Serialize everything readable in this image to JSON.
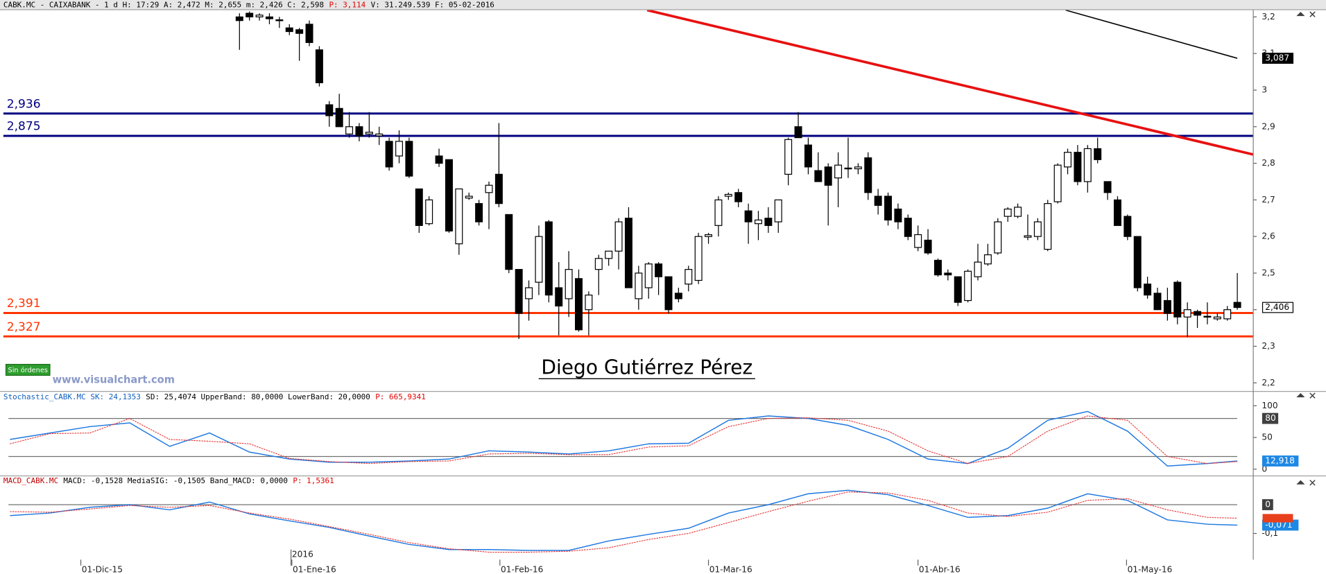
{
  "chart_data": [
    {
      "type": "candlestick",
      "title": [
        {
          "text": "CABK.MC - CAIXABANK -  1 d H: 17:29 A: 2,472 M: 2,655 m: 2,426 C: 2,598",
          "color": "#000000"
        },
        {
          "text": "P: 3,114",
          "color": "#e00000"
        },
        {
          "text": "V: 31.249.539 F: 05-02-2016",
          "color": "#000000"
        }
      ],
      "x": [
        0,
        1,
        2,
        3,
        4,
        5,
        6,
        7,
        8,
        9,
        10,
        11,
        12,
        13,
        14,
        15,
        16,
        17,
        18,
        19,
        20,
        21,
        22,
        23,
        24,
        25,
        26,
        27,
        28,
        29,
        30,
        31,
        32,
        33,
        34,
        35,
        36,
        37,
        38,
        39,
        40,
        41,
        42,
        43,
        44,
        45,
        46,
        47,
        48,
        49,
        50,
        51,
        52,
        53,
        54,
        55,
        56,
        57,
        58,
        59,
        60,
        61,
        62,
        63,
        64,
        65,
        66,
        67,
        68,
        69,
        70,
        71,
        72,
        73,
        74,
        75,
        76,
        77,
        78,
        79,
        80,
        81,
        82,
        83,
        84,
        85,
        86,
        87,
        88,
        89,
        90,
        91,
        92,
        93,
        94,
        95,
        96,
        97,
        98,
        99,
        100
      ],
      "open": [
        3.2,
        3.21,
        3.2,
        3.2,
        3.19,
        3.17,
        3.165,
        3.18,
        3.11,
        2.96,
        2.95,
        2.88,
        2.9,
        2.88,
        2.875,
        2.86,
        2.82,
        2.86,
        2.73,
        2.635,
        2.82,
        2.81,
        2.58,
        2.705,
        2.69,
        2.72,
        2.77,
        2.66,
        2.51,
        2.43,
        2.475,
        2.64,
        2.46,
        2.43,
        2.485,
        2.4,
        2.51,
        2.54,
        2.56,
        2.65,
        2.43,
        2.46,
        2.525,
        2.49,
        2.445,
        2.47,
        2.48,
        2.6,
        2.63,
        2.71,
        2.72,
        2.67,
        2.635,
        2.65,
        2.64,
        2.77,
        2.9,
        2.85,
        2.78,
        2.79,
        2.76,
        2.785,
        2.785,
        2.815,
        2.71,
        2.71,
        2.675,
        2.65,
        2.57,
        2.59,
        2.535,
        2.5,
        2.49,
        2.425,
        2.49,
        2.525,
        2.555,
        2.655,
        2.655,
        2.598,
        2.6,
        2.565,
        2.695,
        2.79,
        2.83,
        2.75,
        2.84,
        2.75,
        2.7,
        2.655,
        2.6,
        2.47,
        2.445,
        2.425,
        2.475,
        2.38,
        2.395,
        2.38,
        2.375,
        2.375,
        2.42
      ],
      "high": [
        3.21,
        3.215,
        3.21,
        3.21,
        3.2,
        3.18,
        3.17,
        3.19,
        3.12,
        2.97,
        2.99,
        2.94,
        2.91,
        2.94,
        2.9,
        2.87,
        2.89,
        2.87,
        2.73,
        2.71,
        2.84,
        2.81,
        2.73,
        2.72,
        2.7,
        2.75,
        2.91,
        2.66,
        2.51,
        2.48,
        2.63,
        2.645,
        2.53,
        2.56,
        2.51,
        2.45,
        2.55,
        2.56,
        2.65,
        2.68,
        2.52,
        2.53,
        2.53,
        2.49,
        2.46,
        2.52,
        2.61,
        2.61,
        2.71,
        2.72,
        2.73,
        2.69,
        2.67,
        2.68,
        2.7,
        2.87,
        2.94,
        2.87,
        2.83,
        2.8,
        2.83,
        2.87,
        2.8,
        2.83,
        2.73,
        2.72,
        2.69,
        2.66,
        2.63,
        2.62,
        2.54,
        2.51,
        2.49,
        2.51,
        2.58,
        2.58,
        2.65,
        2.68,
        2.69,
        2.66,
        2.65,
        2.7,
        2.8,
        2.84,
        2.85,
        2.85,
        2.87,
        2.75,
        2.71,
        2.66,
        2.6,
        2.49,
        2.46,
        2.46,
        2.48,
        2.42,
        2.4,
        2.42,
        2.39,
        2.41,
        2.5
      ],
      "low": [
        3.11,
        3.19,
        3.19,
        3.18,
        3.17,
        3.15,
        3.08,
        3.12,
        3.01,
        2.9,
        2.9,
        2.87,
        2.86,
        2.87,
        2.85,
        2.78,
        2.8,
        2.76,
        2.61,
        2.63,
        2.79,
        2.61,
        2.55,
        2.7,
        2.63,
        2.62,
        2.68,
        2.5,
        2.32,
        2.37,
        2.44,
        2.42,
        2.33,
        2.38,
        2.34,
        2.33,
        2.44,
        2.52,
        2.51,
        2.46,
        2.4,
        2.43,
        2.44,
        2.39,
        2.42,
        2.45,
        2.47,
        2.58,
        2.6,
        2.7,
        2.68,
        2.58,
        2.59,
        2.61,
        2.61,
        2.74,
        2.87,
        2.77,
        2.75,
        2.63,
        2.68,
        2.76,
        2.77,
        2.7,
        2.66,
        2.63,
        2.62,
        2.59,
        2.56,
        2.55,
        2.49,
        2.48,
        2.41,
        2.42,
        2.48,
        2.52,
        2.55,
        2.64,
        2.65,
        2.59,
        2.59,
        2.56,
        2.69,
        2.77,
        2.74,
        2.72,
        2.8,
        2.7,
        2.63,
        2.59,
        2.45,
        2.43,
        2.4,
        2.37,
        2.36,
        2.325,
        2.35,
        2.36,
        2.37,
        2.37,
        2.4
      ],
      "close": [
        3.19,
        3.2,
        3.205,
        3.195,
        3.192,
        3.16,
        3.155,
        3.13,
        3.02,
        2.93,
        2.9,
        2.9,
        2.875,
        2.885,
        2.88,
        2.79,
        2.86,
        2.765,
        2.63,
        2.7,
        2.8,
        2.615,
        2.73,
        2.71,
        2.64,
        2.74,
        2.69,
        2.51,
        2.39,
        2.46,
        2.6,
        2.44,
        2.41,
        2.51,
        2.345,
        2.44,
        2.54,
        2.56,
        2.64,
        2.46,
        2.5,
        2.525,
        2.49,
        2.4,
        2.43,
        2.51,
        2.6,
        2.605,
        2.7,
        2.715,
        2.695,
        2.64,
        2.645,
        2.63,
        2.7,
        2.865,
        2.87,
        2.79,
        2.75,
        2.74,
        2.795,
        2.787,
        2.79,
        2.72,
        2.685,
        2.645,
        2.64,
        2.6,
        2.605,
        2.555,
        2.495,
        2.495,
        2.42,
        2.505,
        2.53,
        2.55,
        2.64,
        2.675,
        2.68,
        2.602,
        2.64,
        2.69,
        2.795,
        2.83,
        2.75,
        2.84,
        2.81,
        2.72,
        2.63,
        2.6,
        2.46,
        2.44,
        2.4,
        2.39,
        2.38,
        2.4,
        2.385,
        2.382,
        2.38,
        2.4,
        2.406
      ],
      "up_color": "#ffffff",
      "down_color": "#000000",
      "last_label": "2,406",
      "xlim": [
        -24,
        101.6
      ],
      "ylim": [
        2.179,
        3.2185
      ],
      "yticks": [
        {
          "value": 3.2,
          "label": "3,2"
        },
        {
          "value": 3.1,
          "label": "3,1"
        },
        3,
        {
          "value": 2.9,
          "label": "2,9"
        },
        {
          "value": 2.8,
          "label": "2,8"
        },
        {
          "value": 2.7,
          "label": "2,7"
        },
        {
          "value": 2.6,
          "label": "2,6"
        },
        {
          "value": 2.5,
          "label": "2,5"
        },
        {
          "value": 2.4,
          "label": "2,4"
        },
        {
          "value": 2.3,
          "label": "2,3"
        },
        {
          "value": 2.2,
          "label": "2,2"
        }
      ],
      "grid": false,
      "levels": [
        {
          "value": 2.936,
          "label": "2,936",
          "color": "#00007f"
        },
        {
          "value": 2.875,
          "label": "2,875",
          "color": "#00007f"
        },
        {
          "value": 2.391,
          "label": "2,391",
          "color": "#ff3300"
        },
        {
          "value": 2.327,
          "label": "2,327",
          "color": "#ff3300"
        }
      ],
      "lines": [
        {
          "color": "#e81010",
          "x": [
            40.85,
            101.6
          ],
          "y": [
            3.2185,
            2.824
          ]
        },
        {
          "color": "#000000",
          "x": [
            82.8,
            100
          ],
          "y": [
            3.2185,
            3.087
          ],
          "end_label": "3,087"
        }
      ]
    },
    {
      "type": "line",
      "title": [
        {
          "text": "Stochastic_CABK.MC SK: 24,1353",
          "color": "#1060c0"
        },
        {
          "text": "SD: 25,4074 UpperBand: 80,0000 LowerBand: 20,0000",
          "color": "#000000"
        },
        {
          "text": "P: 665,9341",
          "color": "#e00000"
        }
      ],
      "x": [
        -23,
        -19,
        -15,
        -11,
        -7,
        -3,
        1,
        5,
        9,
        13,
        17,
        21,
        25,
        29,
        33,
        37,
        41,
        45,
        49,
        53,
        57,
        61,
        65,
        69,
        73,
        77,
        81,
        85,
        89,
        93,
        97,
        100
      ],
      "series": [
        {
          "color": "#1e78e0",
          "values": [
            47,
            57,
            67,
            73,
            36,
            57,
            27,
            16,
            11,
            11,
            13,
            16,
            29,
            27,
            24,
            29,
            40,
            41,
            77,
            84,
            80,
            69,
            47,
            16,
            9,
            33,
            77,
            91,
            60,
            5,
            9,
            12.918
          ],
          "last_value_label": "12,918",
          "box_color": "#1e88e5"
        },
        {
          "color": "#e83030",
          "values": [
            40,
            56,
            57,
            80,
            47,
            44,
            40,
            17,
            12,
            9,
            12,
            13,
            24,
            25,
            23,
            23,
            35,
            37,
            67,
            80,
            81,
            77,
            60,
            29,
            9,
            20,
            60,
            84,
            77,
            20,
            9,
            12
          ]
        }
      ],
      "xlim": [
        -24,
        101.6
      ],
      "ylim": [
        -9.3,
        121.3
      ],
      "yticks": [
        100,
        50,
        0
      ],
      "bands": [
        {
          "value": 80,
          "boxed": true
        },
        {
          "value": 20
        }
      ]
    },
    {
      "type": "line",
      "title": [
        {
          "text": "MACD_CABK.MC",
          "color": "#c00000"
        },
        {
          "text": "MACD: -0,1528 MediaSIG: -0,1505 Band_MACD: 0,0000",
          "color": "#000000"
        },
        {
          "text": "P: 1,5361",
          "color": "#e00000"
        }
      ],
      "x": [
        -23,
        -19,
        -15,
        -11,
        -7,
        -3,
        1,
        5,
        9,
        13,
        17,
        21,
        25,
        29,
        33,
        37,
        41,
        45,
        49,
        53,
        57,
        61,
        65,
        69,
        73,
        77,
        81,
        85,
        89,
        93,
        97,
        100
      ],
      "series": [
        {
          "color": "#1e78e0",
          "values": [
            -0.038,
            -0.029,
            -0.009,
            0,
            -0.018,
            0.009,
            -0.032,
            -0.056,
            -0.079,
            -0.109,
            -0.138,
            -0.156,
            -0.156,
            -0.159,
            -0.159,
            -0.126,
            -0.103,
            -0.082,
            -0.029,
            0,
            0.038,
            0.05,
            0.035,
            -0.003,
            -0.044,
            -0.038,
            -0.012,
            0.038,
            0.015,
            -0.053,
            -0.068,
            -0.071
          ],
          "last_value_label": "-0,071",
          "box_color": "#1e88e5"
        },
        {
          "color": "#e83030",
          "values": [
            -0.024,
            -0.026,
            -0.015,
            -0.003,
            -0.009,
            -0.003,
            -0.029,
            -0.05,
            -0.076,
            -0.103,
            -0.132,
            -0.153,
            -0.165,
            -0.165,
            -0.162,
            -0.15,
            -0.121,
            -0.1,
            -0.062,
            -0.024,
            0.012,
            0.044,
            0.041,
            0.015,
            -0.029,
            -0.041,
            -0.026,
            0.015,
            0.021,
            -0.018,
            -0.044,
            -0.047
          ],
          "box_color": "#e8401c"
        }
      ],
      "xlim": [
        -24,
        101.6
      ],
      "ylim": [
        -0.191,
        0.097
      ],
      "yticks": [
        {
          "value": -0.1,
          "label": "-0,1"
        }
      ],
      "bands": [
        {
          "value": 0,
          "boxed": true
        }
      ],
      "xticks": [
        {
          "value": -15.9,
          "label": "01-Dic-15"
        },
        {
          "value": 5.25,
          "label": "01-Ene-16"
        },
        {
          "value": 26.1,
          "label": "01-Feb-16"
        },
        {
          "value": 47,
          "label": "01-Mar-16"
        },
        {
          "value": 68,
          "label": "01-Abr-16"
        },
        {
          "value": 88.9,
          "label": "01-May-16"
        }
      ],
      "annotations": [
        {
          "x": 5.25,
          "label": "2016"
        }
      ]
    }
  ],
  "overlay": {
    "button": "Sin órdenes",
    "watermark": "www.visualchart.com",
    "author": "Diego Gutiérrez Pérez"
  }
}
